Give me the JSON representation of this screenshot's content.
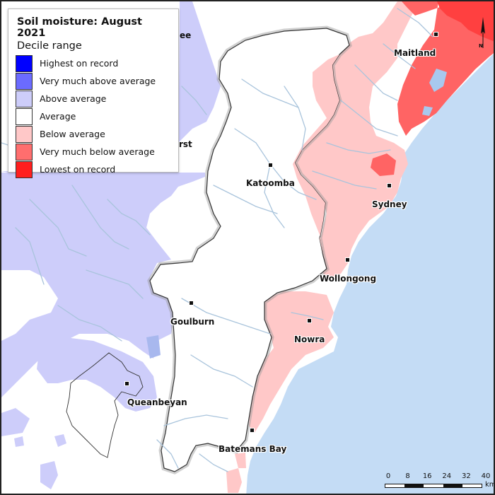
{
  "map": {
    "colors": {
      "ocean": "#c4dcf5",
      "highest_on_record": "#0000ff",
      "very_much_above": "#7070ff",
      "above": "#cdcdfa",
      "average": "#ffffff",
      "below": "#ffc8c8",
      "very_much_below": "#ff6464",
      "lowest_on_record": "#ff1f1f",
      "rivers": "#a9c4dc",
      "catchment_outline": "#555555"
    }
  },
  "legend": {
    "title": "Soil moisture: August 2021",
    "subtitle": "Decile range",
    "items": [
      {
        "label": "Highest on record",
        "color": "#0000ff"
      },
      {
        "label": "Very much above average",
        "color": "#6b6bff"
      },
      {
        "label": "Above average",
        "color": "#cdcdfa"
      },
      {
        "label": "Average",
        "color": "#ffffff"
      },
      {
        "label": "Below average",
        "color": "#ffc8c8"
      },
      {
        "label": "Very much below average",
        "color": "#ff6e6e"
      },
      {
        "label": "Lowest on record",
        "color": "#ff1f1f"
      }
    ]
  },
  "places": {
    "maitland": "Maitland",
    "katoomba": "Katoomba",
    "sydney": "Sydney",
    "wollongong": "Wollongong",
    "goulburn": "Goulburn",
    "nowra": "Nowra",
    "queanbeyan": "Queanbeyan",
    "batemans_bay": "Batemans Bay",
    "partial_ee": "ee",
    "partial_rst": "rst"
  },
  "scale": {
    "ticks": [
      "0",
      "8",
      "16",
      "24",
      "32",
      "40"
    ],
    "unit": "km"
  },
  "north_arrow": {
    "label": "N"
  }
}
